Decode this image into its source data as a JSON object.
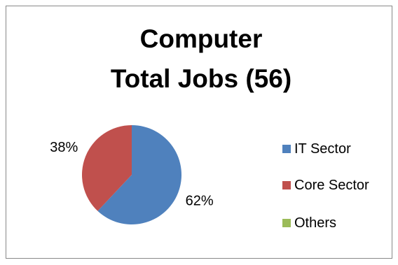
{
  "chart_data": {
    "type": "pie",
    "title": [
      "Computer",
      "Total Jobs (56)"
    ],
    "categories": [
      "IT Sector",
      "Core Sector",
      "Others"
    ],
    "values": [
      62,
      38,
      0
    ],
    "value_labels": [
      "62%",
      "38%",
      null
    ],
    "colors": [
      "#4f81bd",
      "#c0504d",
      "#9bbb59"
    ],
    "legend": "right"
  }
}
